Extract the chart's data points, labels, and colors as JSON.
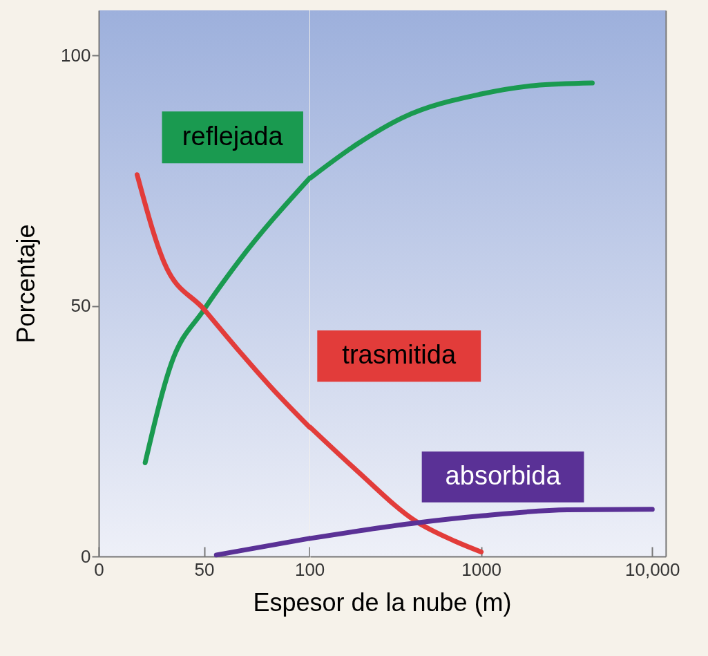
{
  "chart_data": [
    {
      "type": "line",
      "xlabel": "Espesor de la nube (m)",
      "ylabel": "Porcentaje",
      "xlim": [
        0,
        100
      ],
      "xticks": [
        0,
        50,
        100
      ],
      "ylim": [
        0,
        109
      ],
      "yticks": [
        0,
        50,
        100
      ],
      "grid": false,
      "legend": false,
      "marker": "none",
      "line_style": "solid",
      "series": [
        {
          "name": "reflejada",
          "color": "#1a9a50",
          "x": [
            22,
            34.5,
            50,
            66,
            100
          ],
          "values": [
            18.7,
            38.6,
            49.3,
            58.7,
            75.5
          ]
        },
        {
          "color": "#e23c3a",
          "x": [
            18.2,
            31,
            50,
            66,
            81.5,
            100
          ],
          "values": [
            76.2,
            58.7,
            49.3,
            41.3,
            33.9,
            25.8
          ]
        },
        {
          "color": "#5a3196",
          "x": [
            55.8,
            100
          ],
          "values": [
            0.3,
            3.6
          ]
        }
      ]
    },
    {
      "type": "line",
      "xlim": [
        100,
        12000
      ],
      "xticks": [
        1000,
        {
          "value": 10000,
          "label": "10,000"
        }
      ],
      "ylim": [
        0,
        109
      ],
      "yticks": [
        0,
        50,
        100
      ],
      "log": "x",
      "tick_labels": "x",
      "grid": false,
      "legend": false,
      "marker": "none",
      "line_style": "solid",
      "series": [
        {
          "color": "#1a9a50",
          "x": [
            100,
            188,
            348,
            1000,
            2050,
            4460
          ],
          "values": [
            75.5,
            82.3,
            87.6,
            92.3,
            94,
            94.5
          ]
        },
        {
          "name": "trasmitida",
          "color": "#e23c3a",
          "x": [
            100,
            188,
            416,
            708,
            1000
          ],
          "values": [
            25.8,
            17.1,
            7,
            3,
            0.9
          ]
        },
        {
          "name": "absorbida",
          "color": "#5a3196",
          "x": [
            100,
            416,
            1000,
            3190,
            10000
          ],
          "values": [
            3.6,
            6.7,
            8.1,
            9.3,
            9.4
          ]
        }
      ]
    }
  ]
}
